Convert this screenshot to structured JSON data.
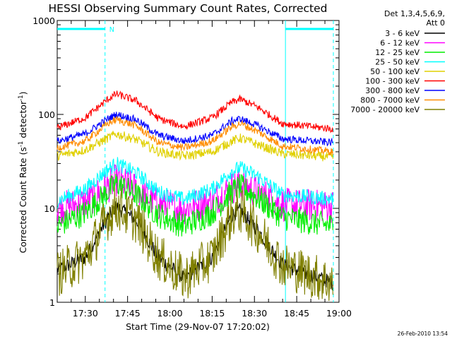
{
  "chart_data": {
    "type": "line",
    "title": "HESSI Observing Summary Count Rates, Corrected",
    "xlabel": "Start Time (29-Nov-07 17:20:02)",
    "ylabel_main": "Corrected Count Rate (s",
    "ylabel_sup1": "-1",
    "ylabel_mid": " detector",
    "ylabel_sup2": "-1",
    "ylabel_end": ")",
    "yscale": "log",
    "ylim": [
      1,
      1000
    ],
    "xlim": [
      "17:20:02",
      "19:00:00"
    ],
    "x_ticks": [
      "17:30",
      "17:45",
      "18:00",
      "18:15",
      "18:30",
      "18:45",
      "19:00"
    ],
    "y_ticks": [
      "1",
      "10",
      "100",
      "1000"
    ],
    "legend_header": [
      "Det 1,3,4,5,6,9,",
      "Att 0"
    ],
    "legend_position": "right",
    "night_flag": "N",
    "timestamp": "26-Feb-2010 13:54",
    "flag_color": "#00ffff",
    "series": [
      {
        "name": "3 - 6 keV",
        "color": "#000000",
        "points": [
          [
            "17:20:02",
            2.2
          ],
          [
            "17:30",
            3.0
          ],
          [
            "17:38",
            8.0
          ],
          [
            "17:41",
            10.5
          ],
          [
            "17:48",
            7.5
          ],
          [
            "17:56",
            3.0
          ],
          [
            "18:05",
            1.8
          ],
          [
            "18:15",
            3.0
          ],
          [
            "18:22",
            8.5
          ],
          [
            "18:25",
            9.5
          ],
          [
            "18:31",
            6.0
          ],
          [
            "18:40",
            2.5
          ],
          [
            "18:58",
            1.6
          ]
        ]
      },
      {
        "name": "6 - 12 keV",
        "color": "#ff00ff",
        "points": [
          [
            "17:20:02",
            10
          ],
          [
            "17:30",
            11.5
          ],
          [
            "17:38",
            17
          ],
          [
            "17:41",
            20
          ],
          [
            "17:48",
            16
          ],
          [
            "17:56",
            11
          ],
          [
            "18:05",
            10
          ],
          [
            "18:15",
            12
          ],
          [
            "18:22",
            16.5
          ],
          [
            "18:25",
            18
          ],
          [
            "18:31",
            15
          ],
          [
            "18:40",
            11
          ],
          [
            "18:58",
            10.5
          ]
        ]
      },
      {
        "name": "12 - 25 keV",
        "color": "#00ee00",
        "points": [
          [
            "17:20:02",
            6.5
          ],
          [
            "17:30",
            9
          ],
          [
            "17:38",
            15
          ],
          [
            "17:41",
            18.5
          ],
          [
            "17:48",
            14
          ],
          [
            "17:56",
            8.5
          ],
          [
            "18:05",
            6.5
          ],
          [
            "18:15",
            9
          ],
          [
            "18:22",
            15
          ],
          [
            "18:25",
            17
          ],
          [
            "18:31",
            13
          ],
          [
            "18:40",
            8
          ],
          [
            "18:58",
            6.5
          ]
        ]
      },
      {
        "name": "25 - 50 keV",
        "color": "#00ffff",
        "points": [
          [
            "17:20:02",
            12
          ],
          [
            "17:30",
            16
          ],
          [
            "17:38",
            26
          ],
          [
            "17:41",
            30
          ],
          [
            "17:48",
            24
          ],
          [
            "17:56",
            15
          ],
          [
            "18:05",
            12.5
          ],
          [
            "18:15",
            16
          ],
          [
            "18:22",
            25
          ],
          [
            "18:25",
            27
          ],
          [
            "18:31",
            22
          ],
          [
            "18:40",
            14
          ],
          [
            "18:58",
            12.5
          ]
        ]
      },
      {
        "name": "50 - 100 keV",
        "color": "#e0d000",
        "points": [
          [
            "17:20:02",
            36
          ],
          [
            "17:30",
            42
          ],
          [
            "17:38",
            56
          ],
          [
            "17:41",
            62
          ],
          [
            "17:48",
            54
          ],
          [
            "17:56",
            40
          ],
          [
            "18:05",
            36
          ],
          [
            "18:15",
            40
          ],
          [
            "18:22",
            52
          ],
          [
            "18:25",
            56
          ],
          [
            "18:31",
            48
          ],
          [
            "18:40",
            38
          ],
          [
            "18:58",
            35
          ]
        ]
      },
      {
        "name": "100 - 300 keV",
        "color": "#ff0000",
        "points": [
          [
            "17:20:02",
            72
          ],
          [
            "17:30",
            92
          ],
          [
            "17:38",
            145
          ],
          [
            "17:41",
            165
          ],
          [
            "17:48",
            140
          ],
          [
            "17:56",
            90
          ],
          [
            "18:05",
            74
          ],
          [
            "18:15",
            92
          ],
          [
            "18:22",
            135
          ],
          [
            "18:25",
            145
          ],
          [
            "18:31",
            120
          ],
          [
            "18:40",
            80
          ],
          [
            "18:58",
            70
          ]
        ]
      },
      {
        "name": "300 - 800 keV",
        "color": "#0000ff",
        "points": [
          [
            "17:20:02",
            52
          ],
          [
            "17:30",
            62
          ],
          [
            "17:38",
            90
          ],
          [
            "17:41",
            100
          ],
          [
            "17:48",
            88
          ],
          [
            "17:56",
            60
          ],
          [
            "18:05",
            52
          ],
          [
            "18:15",
            60
          ],
          [
            "18:22",
            85
          ],
          [
            "18:25",
            90
          ],
          [
            "18:31",
            76
          ],
          [
            "18:40",
            55
          ],
          [
            "18:58",
            50
          ]
        ]
      },
      {
        "name": "800 - 7000 keV",
        "color": "#ff8c00",
        "points": [
          [
            "17:20:02",
            44
          ],
          [
            "17:30",
            52
          ],
          [
            "17:38",
            80
          ],
          [
            "17:41",
            88
          ],
          [
            "17:48",
            76
          ],
          [
            "17:56",
            50
          ],
          [
            "18:05",
            44
          ],
          [
            "18:15",
            52
          ],
          [
            "18:22",
            74
          ],
          [
            "18:25",
            80
          ],
          [
            "18:31",
            66
          ],
          [
            "18:40",
            46
          ],
          [
            "18:58",
            40
          ]
        ]
      },
      {
        "name": "7000 - 20000 keV",
        "color": "#808000",
        "points": [
          [
            "17:20:02",
            2.0
          ],
          [
            "17:30",
            3.0
          ],
          [
            "17:38",
            8.0
          ],
          [
            "17:41",
            10.5
          ],
          [
            "17:48",
            7.5
          ],
          [
            "17:56",
            3.0
          ],
          [
            "18:05",
            1.8
          ],
          [
            "18:15",
            3.0
          ],
          [
            "18:22",
            8.5
          ],
          [
            "18:25",
            9.5
          ],
          [
            "18:31",
            6.0
          ],
          [
            "18:40",
            2.5
          ],
          [
            "18:58",
            1.6
          ]
        ]
      }
    ],
    "flags": [
      {
        "label": "N",
        "start": "17:20:02",
        "end": "17:37:00",
        "end_line": "17:37:00"
      },
      {
        "label": "",
        "start": "18:41:00",
        "end": "18:58:00",
        "end_line": "18:58:00"
      }
    ]
  }
}
